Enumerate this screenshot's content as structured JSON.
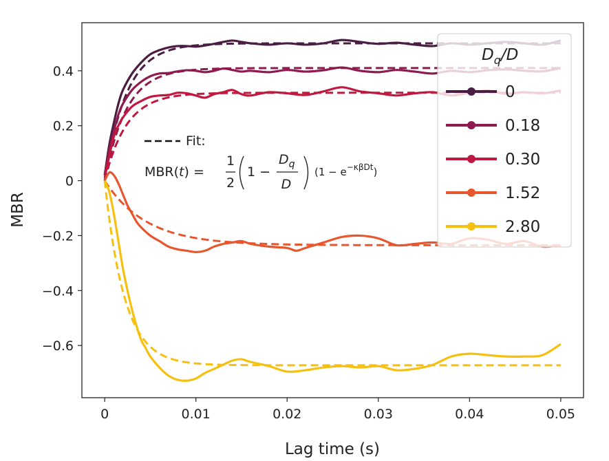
{
  "chart_data": {
    "type": "line",
    "xlabel": "Lag time (s)",
    "ylabel": "MBR",
    "xlim": [
      -0.0025,
      0.0525
    ],
    "ylim": [
      -0.79,
      0.575
    ],
    "xticks": [
      {
        "value": 0,
        "label": "0"
      },
      {
        "value": 0.01,
        "label": "0.01"
      },
      {
        "value": 0.02,
        "label": "0.02"
      },
      {
        "value": 0.03,
        "label": "0.03"
      },
      {
        "value": 0.04,
        "label": "0.04"
      },
      {
        "value": 0.05,
        "label": "0.05"
      }
    ],
    "yticks": [
      {
        "value": 0.4,
        "label": "0.4"
      },
      {
        "value": 0.2,
        "label": "0.2"
      },
      {
        "value": 0,
        "label": "0"
      },
      {
        "value": -0.2,
        "label": "−0.2"
      },
      {
        "value": -0.4,
        "label": "−0.4"
      },
      {
        "value": -0.6,
        "label": "−0.6"
      }
    ],
    "legend": {
      "title_main": "D",
      "title_sub": "q",
      "title_tail": "/D",
      "placement": "upper-right"
    },
    "annotation": {
      "dash_label": "Fit:",
      "lhs": "MBR(",
      "lhs_var": "t",
      "lhs_close": ") =",
      "half_num": "1",
      "half_den": "2",
      "one_minus": "1 −",
      "ratio_num": "D",
      "ratio_num_sub": "q",
      "ratio_den": "D",
      "exp_factor": "(1 − e",
      "exp_power": "−κβDt",
      "exp_close": ")"
    },
    "series": [
      {
        "name": "0",
        "color": "#4a1d43",
        "x": [
          0,
          0.0005,
          0.001,
          0.0015,
          0.002,
          0.003,
          0.004,
          0.005,
          0.006,
          0.007,
          0.008,
          0.009,
          0.01,
          0.011,
          0.012,
          0.013,
          0.014,
          0.015,
          0.016,
          0.018,
          0.02,
          0.022,
          0.024,
          0.026,
          0.028,
          0.03,
          0.032,
          0.034,
          0.036,
          0.038,
          0.04,
          0.042,
          0.044,
          0.046,
          0.048,
          0.05
        ],
        "y": [
          0.02,
          0.13,
          0.21,
          0.28,
          0.33,
          0.39,
          0.43,
          0.46,
          0.475,
          0.485,
          0.49,
          0.49,
          0.488,
          0.492,
          0.498,
          0.505,
          0.51,
          0.505,
          0.5,
          0.495,
          0.5,
          0.495,
          0.5,
          0.512,
          0.505,
          0.498,
          0.502,
          0.495,
          0.49,
          0.5,
          0.495,
          0.5,
          0.505,
          0.5,
          0.495,
          0.51
        ],
        "fit_k": 420,
        "fit_amp": 0.5
      },
      {
        "name": "0.18",
        "color": "#8f1a4f",
        "x": [
          0,
          0.0005,
          0.001,
          0.0015,
          0.002,
          0.003,
          0.004,
          0.005,
          0.006,
          0.007,
          0.008,
          0.009,
          0.01,
          0.011,
          0.012,
          0.013,
          0.014,
          0.015,
          0.016,
          0.018,
          0.02,
          0.022,
          0.024,
          0.026,
          0.028,
          0.03,
          0.032,
          0.034,
          0.036,
          0.038,
          0.04,
          0.042,
          0.044,
          0.046,
          0.048,
          0.05
        ],
        "y": [
          0.02,
          0.11,
          0.18,
          0.24,
          0.28,
          0.33,
          0.36,
          0.38,
          0.39,
          0.392,
          0.398,
          0.402,
          0.4,
          0.395,
          0.4,
          0.408,
          0.403,
          0.397,
          0.4,
          0.395,
          0.403,
          0.397,
          0.402,
          0.412,
          0.4,
          0.395,
          0.403,
          0.397,
          0.39,
          0.4,
          0.395,
          0.402,
          0.405,
          0.4,
          0.398,
          0.41
        ],
        "fit_k": 420,
        "fit_amp": 0.41
      },
      {
        "name": "0.30",
        "color": "#c0183f",
        "x": [
          0,
          0.0005,
          0.001,
          0.0015,
          0.002,
          0.003,
          0.004,
          0.005,
          0.006,
          0.007,
          0.008,
          0.009,
          0.01,
          0.011,
          0.012,
          0.013,
          0.014,
          0.015,
          0.016,
          0.018,
          0.02,
          0.022,
          0.024,
          0.026,
          0.028,
          0.03,
          0.032,
          0.034,
          0.036,
          0.038,
          0.04,
          0.042,
          0.044,
          0.046,
          0.048,
          0.05
        ],
        "y": [
          0.01,
          0.09,
          0.16,
          0.2,
          0.23,
          0.27,
          0.29,
          0.305,
          0.31,
          0.312,
          0.32,
          0.318,
          0.31,
          0.302,
          0.315,
          0.322,
          0.33,
          0.315,
          0.31,
          0.322,
          0.318,
          0.312,
          0.325,
          0.34,
          0.325,
          0.318,
          0.31,
          0.318,
          0.322,
          0.31,
          0.32,
          0.328,
          0.316,
          0.322,
          0.318,
          0.328
        ],
        "fit_k": 420,
        "fit_amp": 0.32
      },
      {
        "name": "1.52",
        "color": "#e8562e",
        "x": [
          0,
          0.0005,
          0.001,
          0.0015,
          0.002,
          0.0025,
          0.003,
          0.0035,
          0.004,
          0.005,
          0.006,
          0.007,
          0.008,
          0.009,
          0.01,
          0.011,
          0.012,
          0.013,
          0.014,
          0.015,
          0.016,
          0.018,
          0.02,
          0.021,
          0.022,
          0.024,
          0.026,
          0.028,
          0.03,
          0.032,
          0.034,
          0.036,
          0.038,
          0.04,
          0.042,
          0.044,
          0.046,
          0.048,
          0.05
        ],
        "y": [
          0.0,
          0.03,
          0.02,
          -0.01,
          -0.05,
          -0.09,
          -0.12,
          -0.15,
          -0.17,
          -0.2,
          -0.22,
          -0.24,
          -0.25,
          -0.255,
          -0.26,
          -0.255,
          -0.24,
          -0.23,
          -0.225,
          -0.22,
          -0.23,
          -0.24,
          -0.245,
          -0.255,
          -0.245,
          -0.225,
          -0.205,
          -0.2,
          -0.21,
          -0.235,
          -0.23,
          -0.225,
          -0.23,
          -0.21,
          -0.215,
          -0.23,
          -0.22,
          -0.24,
          -0.235
        ],
        "fit_k": 220,
        "fit_amp": -0.235
      },
      {
        "name": "2.80",
        "color": "#f5c010",
        "x": [
          0,
          0.0005,
          0.001,
          0.0015,
          0.002,
          0.0025,
          0.003,
          0.0035,
          0.004,
          0.0045,
          0.005,
          0.006,
          0.007,
          0.008,
          0.009,
          0.01,
          0.011,
          0.012,
          0.013,
          0.014,
          0.015,
          0.016,
          0.018,
          0.02,
          0.022,
          0.024,
          0.026,
          0.028,
          0.03,
          0.032,
          0.034,
          0.036,
          0.038,
          0.04,
          0.042,
          0.044,
          0.046,
          0.048,
          0.05
        ],
        "y": [
          0.0,
          -0.04,
          -0.12,
          -0.22,
          -0.32,
          -0.4,
          -0.47,
          -0.53,
          -0.58,
          -0.61,
          -0.64,
          -0.68,
          -0.71,
          -0.725,
          -0.728,
          -0.72,
          -0.7,
          -0.685,
          -0.67,
          -0.655,
          -0.65,
          -0.66,
          -0.675,
          -0.695,
          -0.69,
          -0.68,
          -0.675,
          -0.68,
          -0.675,
          -0.69,
          -0.685,
          -0.67,
          -0.64,
          -0.63,
          -0.635,
          -0.64,
          -0.64,
          -0.635,
          -0.595
        ],
        "fit_k": 460,
        "fit_amp": -0.672
      }
    ]
  }
}
